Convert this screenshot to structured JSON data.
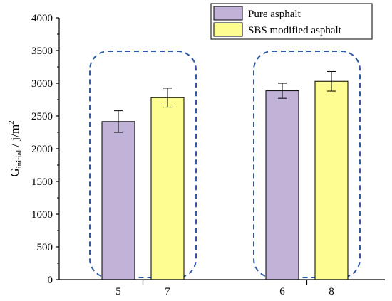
{
  "chart_data": {
    "type": "bar",
    "categories": [
      "5",
      "7",
      "6",
      "8"
    ],
    "values": [
      2415,
      2780,
      2885,
      3030
    ],
    "errors": [
      165,
      145,
      115,
      150
    ],
    "series_index": [
      0,
      1,
      0,
      1
    ],
    "series": [
      {
        "name": "Pure asphalt",
        "color": "#c1b2d8"
      },
      {
        "name": "SBS modified asphalt",
        "color": "#fdfd92"
      }
    ],
    "ylabel": {
      "main": "G",
      "subscript": "initial",
      "unit": " / j/m",
      "superscript": "2"
    },
    "ylim": [
      0,
      4000
    ],
    "yticks": [
      "0",
      "500",
      "1000",
      "1500",
      "2000",
      "2500",
      "3000",
      "3500",
      "4000"
    ],
    "groups": [
      [
        0,
        1
      ],
      [
        2,
        3
      ]
    ],
    "group_outline_color": "#2f59a6",
    "legend_position": "top-right",
    "grid": false
  }
}
